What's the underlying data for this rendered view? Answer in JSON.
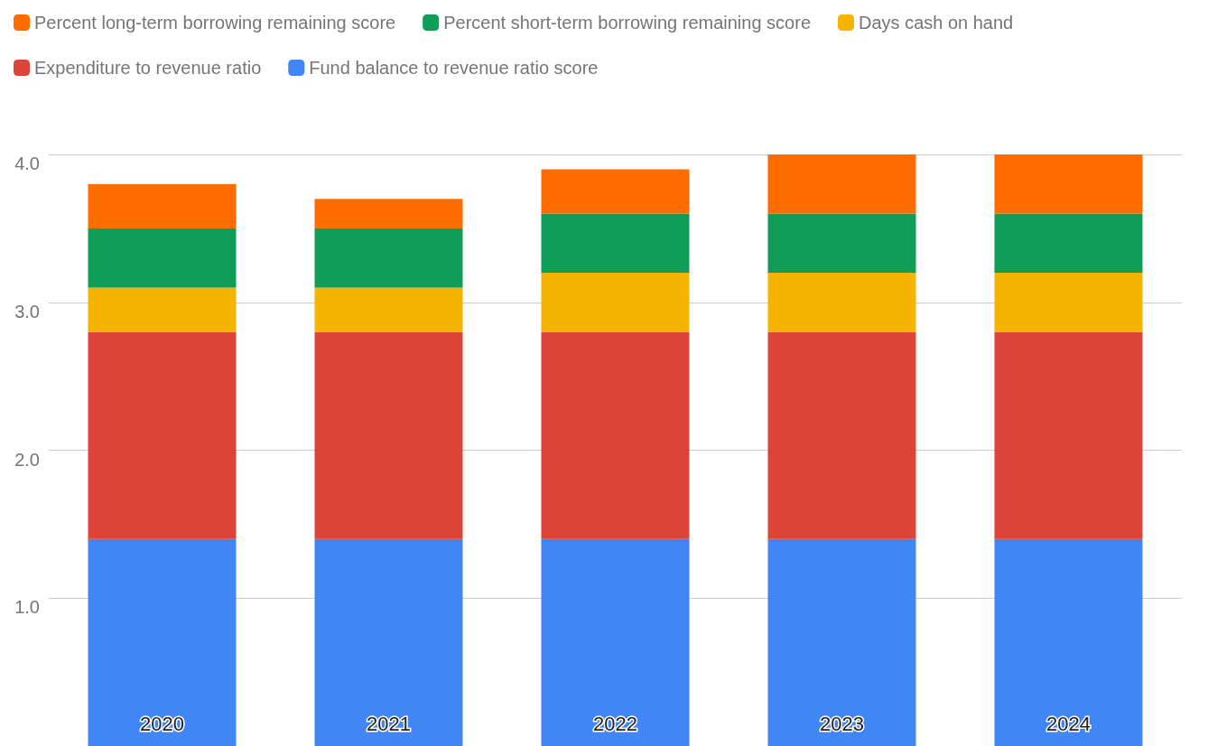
{
  "chart_data": {
    "type": "bar",
    "stacked": true,
    "categories": [
      "2020",
      "2021",
      "2022",
      "2023",
      "2024"
    ],
    "series": [
      {
        "name": "Fund balance to revenue ratio score",
        "color": "#4285f4",
        "values": [
          1.4,
          1.4,
          1.4,
          1.4,
          1.4
        ]
      },
      {
        "name": "Expenditure to revenue ratio",
        "color": "#db4437",
        "values": [
          1.4,
          1.4,
          1.4,
          1.4,
          1.4
        ]
      },
      {
        "name": "Days cash on hand",
        "color": "#f4b400",
        "values": [
          0.3,
          0.3,
          0.4,
          0.4,
          0.4
        ]
      },
      {
        "name": "Percent short-term borrowing remaining score",
        "color": "#0f9d58",
        "values": [
          0.4,
          0.4,
          0.4,
          0.4,
          0.4
        ]
      },
      {
        "name": "Percent long-term borrowing remaining score",
        "color": "#ff6d01",
        "values": [
          0.3,
          0.2,
          0.3,
          0.4,
          0.4
        ]
      }
    ],
    "ylim": [
      0,
      4
    ],
    "yticks": [
      {
        "value": 1,
        "label": "1.0"
      },
      {
        "value": 2,
        "label": "2.0"
      },
      {
        "value": 3,
        "label": "3.0"
      },
      {
        "value": 4,
        "label": "4.0"
      }
    ],
    "grid": "y",
    "legend": "top left"
  }
}
